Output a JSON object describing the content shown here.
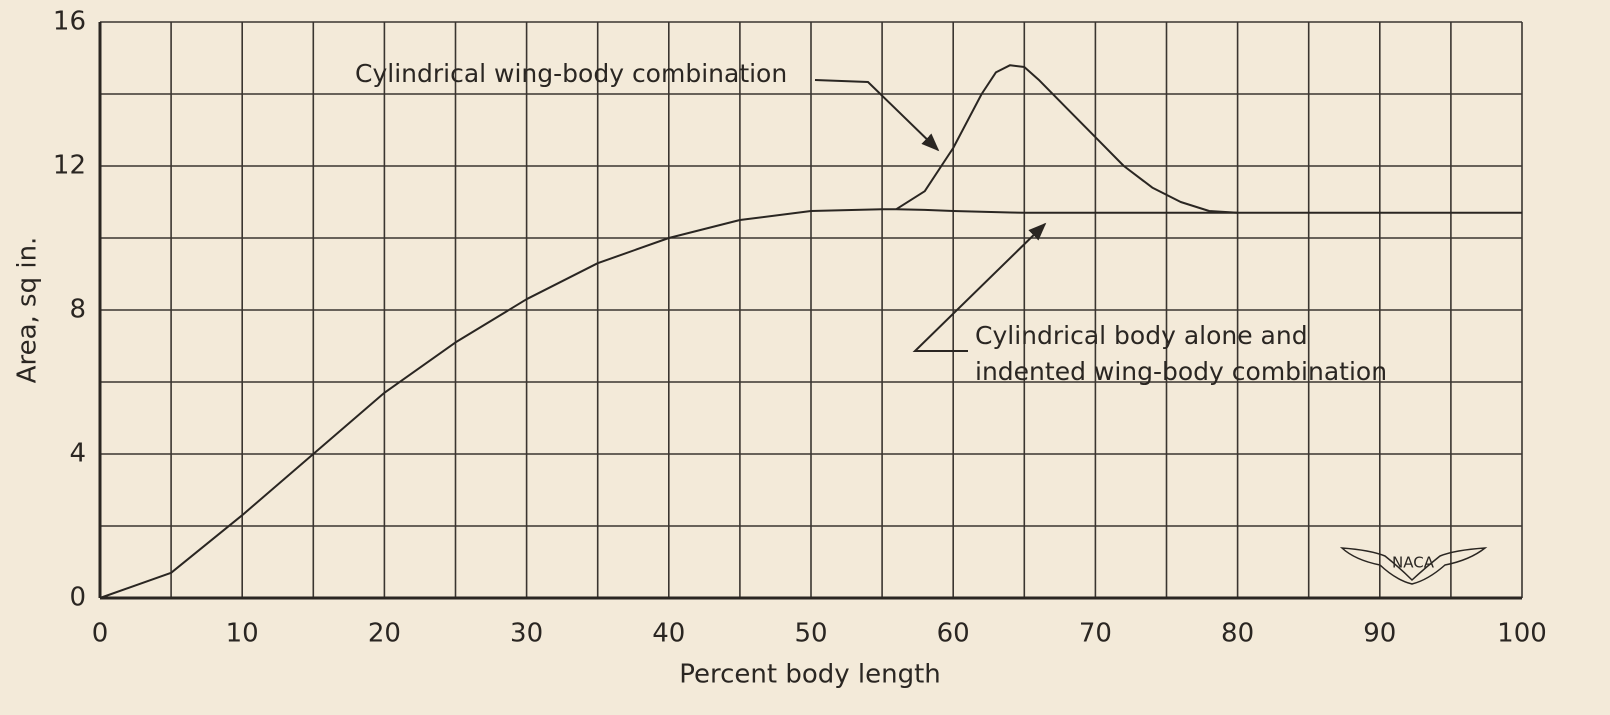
{
  "chart_data": {
    "type": "line",
    "xlabel": "Percent body length",
    "ylabel": "Area, sq in.",
    "x": [
      0,
      5,
      10,
      15,
      20,
      25,
      30,
      35,
      40,
      45,
      50,
      55,
      56,
      58,
      60,
      62,
      63,
      64,
      65,
      66,
      68,
      70,
      72,
      74,
      76,
      78,
      80,
      90,
      100
    ],
    "series": [
      {
        "name": "Cylindrical body alone and indented wing-body combination",
        "color": "#2a2622",
        "values": [
          0,
          0.7,
          2.3,
          4.0,
          5.7,
          7.1,
          8.3,
          9.3,
          10.0,
          10.5,
          10.75,
          10.8,
          10.8,
          10.78,
          10.75,
          10.73,
          10.72,
          10.71,
          10.7,
          10.7,
          10.7,
          10.7,
          10.7,
          10.7,
          10.7,
          10.7,
          10.7,
          10.7,
          10.7
        ]
      },
      {
        "name": "Cylindrical wing-body combination",
        "color": "#2a2622",
        "values": [
          null,
          null,
          null,
          null,
          null,
          null,
          null,
          null,
          null,
          null,
          null,
          null,
          10.8,
          11.3,
          12.5,
          14.0,
          14.6,
          14.8,
          14.75,
          14.4,
          13.6,
          12.8,
          12.0,
          11.4,
          11.0,
          10.75,
          10.7,
          null,
          null
        ]
      }
    ],
    "annotations": [
      "Cylindrical wing-body combination",
      "Cylindrical body alone and",
      "indented wing-body combination"
    ],
    "logo": "NACA",
    "xlim": [
      0,
      100
    ],
    "xticks": [
      0,
      10,
      20,
      30,
      40,
      50,
      60,
      70,
      80,
      90,
      100
    ],
    "ylim": [
      0,
      16
    ],
    "yticks": [
      0,
      4,
      8,
      12,
      16
    ],
    "grid": true,
    "minor_grid": true
  }
}
